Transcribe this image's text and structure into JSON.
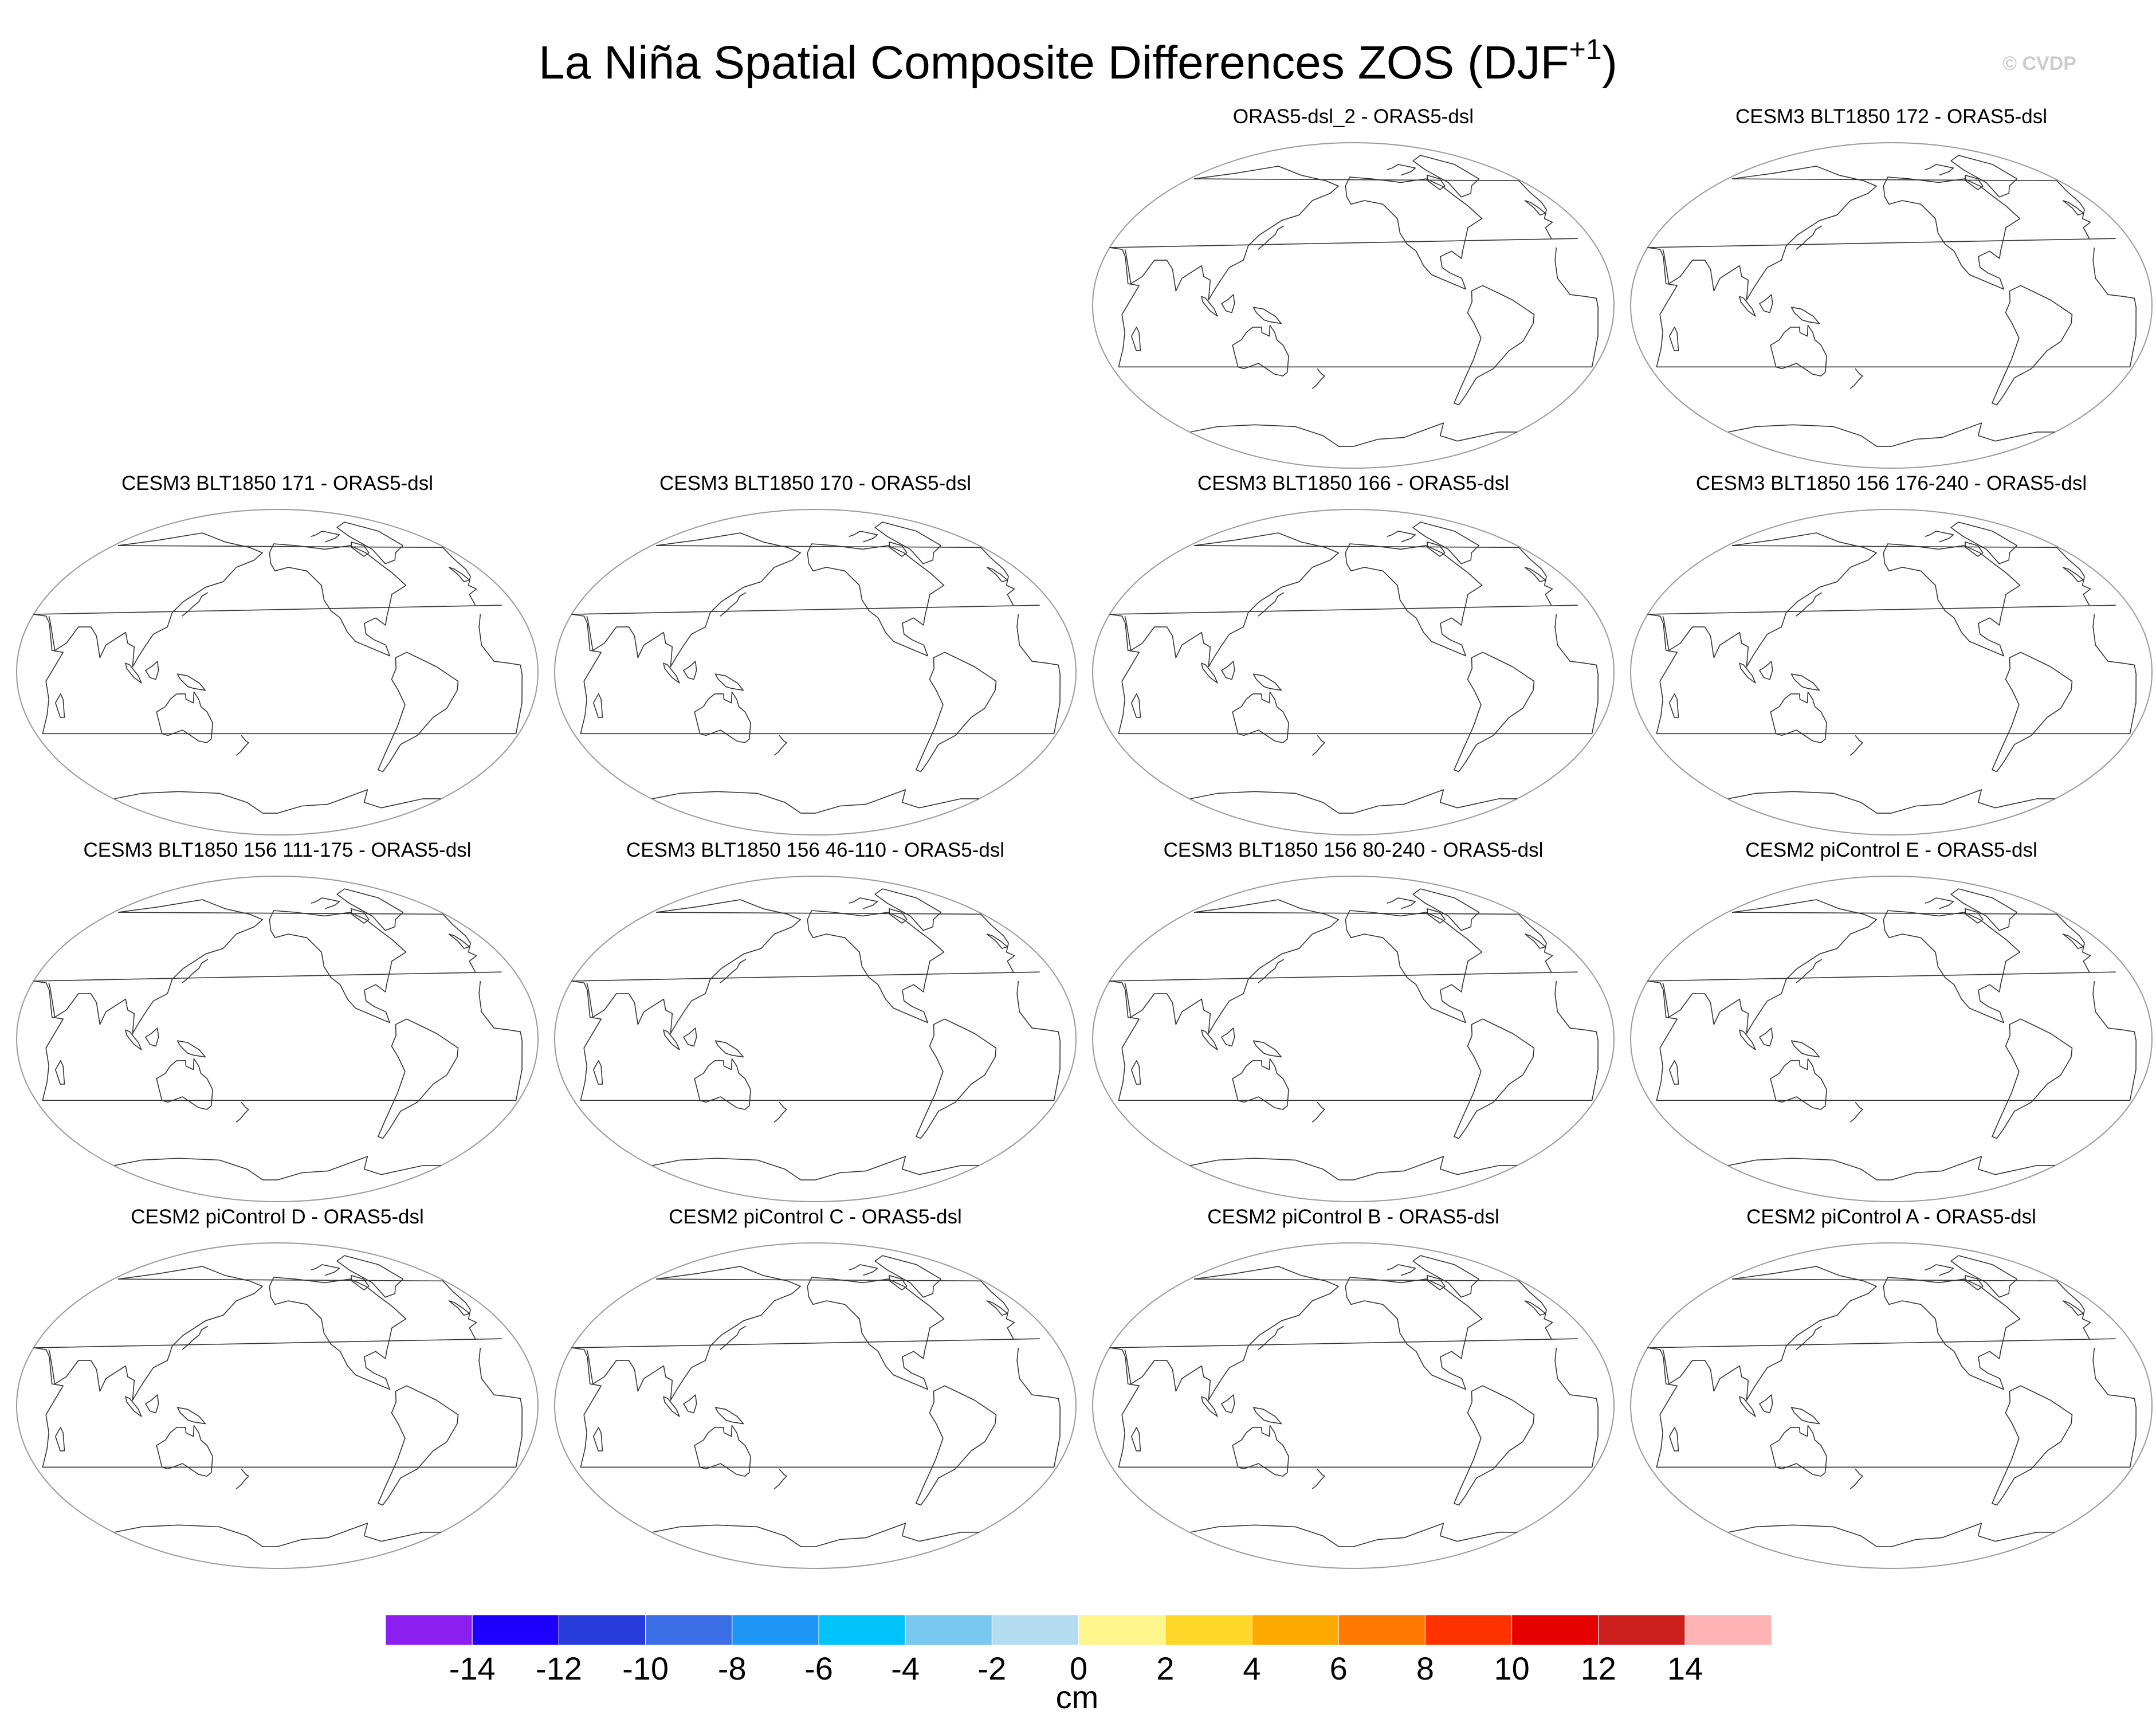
{
  "title": {
    "main": "La Niña Spatial Composite Differences ZOS (DJF",
    "superscript": "+1",
    "closing": ")"
  },
  "watermark": "© CVDP",
  "panels": [
    {
      "id": "p1",
      "title": "ORAS5-dsl_2 - ORAS5-dsl"
    },
    {
      "id": "p2",
      "title": "CESM3 BLT1850 172 - ORAS5-dsl"
    },
    {
      "id": "p3",
      "title": "CESM3 BLT1850 171 - ORAS5-dsl"
    },
    {
      "id": "p4",
      "title": "CESM3 BLT1850 170 - ORAS5-dsl"
    },
    {
      "id": "p5",
      "title": "CESM3 BLT1850 166 - ORAS5-dsl"
    },
    {
      "id": "p6",
      "title": "CESM3 BLT1850 156 176-240 - ORAS5-dsl"
    },
    {
      "id": "p7",
      "title": "CESM3 BLT1850 156 111-175 - ORAS5-dsl"
    },
    {
      "id": "p8",
      "title": "CESM3 BLT1850 156 46-110 - ORAS5-dsl"
    },
    {
      "id": "p9",
      "title": "CESM3 BLT1850 156 80-240 - ORAS5-dsl"
    },
    {
      "id": "p10",
      "title": "CESM2 piControl E - ORAS5-dsl"
    },
    {
      "id": "p11",
      "title": "CESM2 piControl D - ORAS5-dsl"
    },
    {
      "id": "p12",
      "title": "CESM2 piControl C - ORAS5-dsl"
    },
    {
      "id": "p13",
      "title": "CESM2 piControl B - ORAS5-dsl"
    },
    {
      "id": "p14",
      "title": "CESM2 piControl A - ORAS5-dsl"
    }
  ],
  "colorbar": {
    "unit": "cm",
    "levels": [
      -14,
      -12,
      -10,
      -8,
      -6,
      -4,
      -2,
      0,
      2,
      4,
      6,
      8,
      10,
      12,
      14
    ],
    "tick_labels": [
      "-14",
      "-12",
      "-10",
      "-8",
      "-6",
      "-4",
      "-2",
      "0",
      "2",
      "4",
      "6",
      "8",
      "10",
      "12",
      "14"
    ],
    "colors": [
      "#8b1ef0",
      "#1e00ff",
      "#283cdc",
      "#3c6ee6",
      "#1e96f5",
      "#00c3fa",
      "#78c8f0",
      "#b4dcf0",
      "#fff58c",
      "#ffd728",
      "#ffaa00",
      "#ff7800",
      "#ff3200",
      "#e60000",
      "#cd1e1e",
      "#ffb4b4"
    ]
  }
}
